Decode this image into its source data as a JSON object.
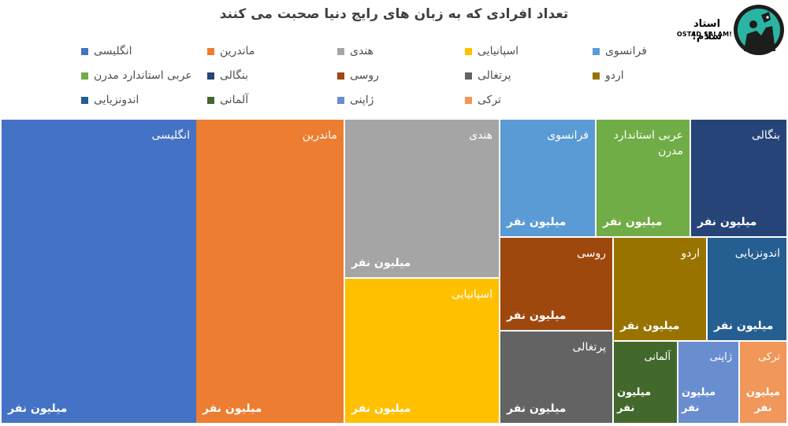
{
  "chart_data": {
    "type": "treemap",
    "title": "تعداد افرادی که به زبان های رایج دنیا صحبت می کنند",
    "legend_position": "top",
    "value_label": "میلیون نفر",
    "items": [
      {
        "name": "انگلیسی",
        "color": "#4472C4",
        "weight": 1
      },
      {
        "name": "ماندرین",
        "color": "#ED7D31",
        "weight": 1
      },
      {
        "name": "هندی",
        "color": "#A5A5A5",
        "weight": 1
      },
      {
        "name": "اسپانیایی",
        "color": "#FFC000",
        "weight": 1
      },
      {
        "name": "فرانسوی",
        "color": "#5B9BD5",
        "weight": 1
      },
      {
        "name": "عربی استاندارد مدرن",
        "color": "#70AD47",
        "weight": 1
      },
      {
        "name": "بنگالی",
        "color": "#264478",
        "weight": 1
      },
      {
        "name": "روسی",
        "color": "#9E480E",
        "weight": 1
      },
      {
        "name": "پرتغالی",
        "color": "#636363",
        "weight": 1
      },
      {
        "name": "اردو",
        "color": "#997300",
        "weight": 1
      },
      {
        "name": "اندونزیایی",
        "color": "#255E91",
        "weight": 1
      },
      {
        "name": "آلمانی",
        "color": "#43682B",
        "weight": 1
      },
      {
        "name": "ژاپنی",
        "color": "#698ED0",
        "weight": 1
      },
      {
        "name": "ترکی",
        "color": "#F1975A",
        "weight": 1
      }
    ]
  },
  "logo": {
    "title": "استاد سلام!",
    "subtitle": "OSTAD SALAM!"
  }
}
